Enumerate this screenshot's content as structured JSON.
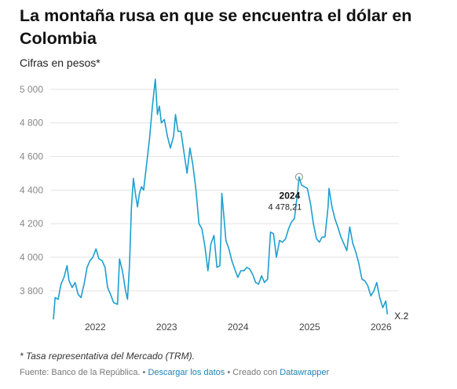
{
  "header": {
    "title": "La montaña rusa en que se encuentra el dólar en Colombia",
    "subtitle": "Cifras en pesos*"
  },
  "chart_data": {
    "type": "line",
    "title": "La montaña rusa en que se encuentra el dólar en Colombia",
    "subtitle": "Cifras en pesos*",
    "xlabel": "",
    "ylabel": "",
    "ylim": [
      3650,
      5060
    ],
    "xlim": [
      "2021-06-01",
      "2026-03-01"
    ],
    "y_ticks": [
      3800,
      4000,
      4200,
      4400,
      4600,
      4800,
      5000
    ],
    "y_tick_labels": [
      "3 800",
      "4 000",
      "4 200",
      "4 400",
      "4 600",
      "4 800",
      "5 000"
    ],
    "x_ticks": [
      "2022-01-01",
      "2023-01-01",
      "2024-01-01",
      "2025-01-01",
      "2026-01-01"
    ],
    "x_tick_labels": [
      "2022",
      "2023",
      "2024",
      "2025",
      "2026"
    ],
    "grid": "horizontal",
    "line_color": "#1c9fcf",
    "series": [
      {
        "name": "",
        "points": [
          [
            "2021-06-01",
            3630
          ],
          [
            "2021-06-10",
            3760
          ],
          [
            "2021-06-25",
            3750
          ],
          [
            "2021-07-10",
            3840
          ],
          [
            "2021-07-25",
            3880
          ],
          [
            "2021-08-10",
            3950
          ],
          [
            "2021-08-20",
            3860
          ],
          [
            "2021-09-05",
            3820
          ],
          [
            "2021-09-20",
            3850
          ],
          [
            "2021-10-05",
            3780
          ],
          [
            "2021-10-20",
            3760
          ],
          [
            "2021-11-05",
            3840
          ],
          [
            "2021-11-20",
            3940
          ],
          [
            "2021-12-05",
            3980
          ],
          [
            "2021-12-20",
            4000
          ],
          [
            "2022-01-05",
            4050
          ],
          [
            "2022-01-20",
            3990
          ],
          [
            "2022-02-05",
            3980
          ],
          [
            "2022-02-20",
            3940
          ],
          [
            "2022-03-05",
            3820
          ],
          [
            "2022-03-20",
            3780
          ],
          [
            "2022-04-05",
            3730
          ],
          [
            "2022-04-25",
            3720
          ],
          [
            "2022-05-05",
            3990
          ],
          [
            "2022-05-20",
            3920
          ],
          [
            "2022-06-05",
            3800
          ],
          [
            "2022-06-15",
            3750
          ],
          [
            "2022-06-25",
            3950
          ],
          [
            "2022-07-05",
            4300
          ],
          [
            "2022-07-15",
            4470
          ],
          [
            "2022-07-25",
            4380
          ],
          [
            "2022-08-05",
            4300
          ],
          [
            "2022-08-15",
            4380
          ],
          [
            "2022-08-25",
            4420
          ],
          [
            "2022-09-05",
            4400
          ],
          [
            "2022-09-20",
            4550
          ],
          [
            "2022-10-05",
            4700
          ],
          [
            "2022-10-20",
            4900
          ],
          [
            "2022-11-04",
            5060
          ],
          [
            "2022-11-15",
            4850
          ],
          [
            "2022-11-25",
            4900
          ],
          [
            "2022-12-05",
            4800
          ],
          [
            "2022-12-20",
            4820
          ],
          [
            "2023-01-05",
            4720
          ],
          [
            "2023-01-20",
            4650
          ],
          [
            "2023-02-05",
            4720
          ],
          [
            "2023-02-15",
            4850
          ],
          [
            "2023-02-28",
            4750
          ],
          [
            "2023-03-15",
            4750
          ],
          [
            "2023-03-31",
            4620
          ],
          [
            "2023-04-15",
            4500
          ],
          [
            "2023-04-30",
            4650
          ],
          [
            "2023-05-15",
            4550
          ],
          [
            "2023-05-31",
            4400
          ],
          [
            "2023-06-15",
            4200
          ],
          [
            "2023-06-30",
            4170
          ],
          [
            "2023-07-15",
            4070
          ],
          [
            "2023-07-31",
            3920
          ],
          [
            "2023-08-15",
            4080
          ],
          [
            "2023-08-31",
            4130
          ],
          [
            "2023-09-15",
            3940
          ],
          [
            "2023-09-30",
            3950
          ],
          [
            "2023-10-05",
            4130
          ],
          [
            "2023-10-10",
            4380
          ],
          [
            "2023-10-20",
            4250
          ],
          [
            "2023-10-31",
            4100
          ],
          [
            "2023-11-15",
            4050
          ],
          [
            "2023-11-30",
            3980
          ],
          [
            "2023-12-15",
            3930
          ],
          [
            "2023-12-31",
            3880
          ],
          [
            "2024-01-15",
            3920
          ],
          [
            "2024-01-31",
            3920
          ],
          [
            "2024-02-15",
            3940
          ],
          [
            "2024-02-29",
            3930
          ],
          [
            "2024-03-15",
            3900
          ],
          [
            "2024-03-31",
            3850
          ],
          [
            "2024-04-15",
            3840
          ],
          [
            "2024-04-30",
            3890
          ],
          [
            "2024-05-15",
            3850
          ],
          [
            "2024-05-31",
            3870
          ],
          [
            "2024-06-15",
            4150
          ],
          [
            "2024-06-30",
            4140
          ],
          [
            "2024-07-15",
            4000
          ],
          [
            "2024-07-31",
            4100
          ],
          [
            "2024-08-15",
            4090
          ],
          [
            "2024-08-31",
            4110
          ],
          [
            "2024-09-15",
            4170
          ],
          [
            "2024-09-30",
            4210
          ],
          [
            "2024-10-15",
            4230
          ],
          [
            "2024-10-31",
            4380
          ],
          [
            "2024-11-08",
            4478.21
          ],
          [
            "2024-11-20",
            4430
          ],
          [
            "2024-12-05",
            4420
          ],
          [
            "2024-12-20",
            4410
          ],
          [
            "2025-01-05",
            4320
          ],
          [
            "2025-01-20",
            4200
          ],
          [
            "2025-02-05",
            4110
          ],
          [
            "2025-02-20",
            4090
          ],
          [
            "2025-03-05",
            4120
          ],
          [
            "2025-03-20",
            4120
          ],
          [
            "2025-04-05",
            4300
          ],
          [
            "2025-04-10",
            4410
          ],
          [
            "2025-04-25",
            4300
          ],
          [
            "2025-05-10",
            4230
          ],
          [
            "2025-05-25",
            4180
          ],
          [
            "2025-06-10",
            4120
          ],
          [
            "2025-06-25",
            4080
          ],
          [
            "2025-07-10",
            4040
          ],
          [
            "2025-07-25",
            4180
          ],
          [
            "2025-08-10",
            4080
          ],
          [
            "2025-08-25",
            4030
          ],
          [
            "2025-09-10",
            3960
          ],
          [
            "2025-09-25",
            3870
          ],
          [
            "2025-10-10",
            3860
          ],
          [
            "2025-10-25",
            3830
          ],
          [
            "2025-11-10",
            3770
          ],
          [
            "2025-11-25",
            3800
          ],
          [
            "2025-12-10",
            3850
          ],
          [
            "2025-12-25",
            3760
          ],
          [
            "2026-01-10",
            3700
          ],
          [
            "2026-01-25",
            3740
          ],
          [
            "2026-02-02",
            3660
          ]
        ]
      }
    ],
    "annotations": [
      {
        "date": "2024-11-08",
        "year_label": "2024",
        "value": 4478.21,
        "value_label": "4 478,21"
      }
    ],
    "end_label": "X.2"
  },
  "footnote": "* Tasa representativa del Mercado (TRM).",
  "footer": {
    "source": "Fuente: Banco de la República.",
    "sep1": " • ",
    "download": "Descargar los datos",
    "sep2": " • Creado con ",
    "tool": "Datawrapper"
  }
}
